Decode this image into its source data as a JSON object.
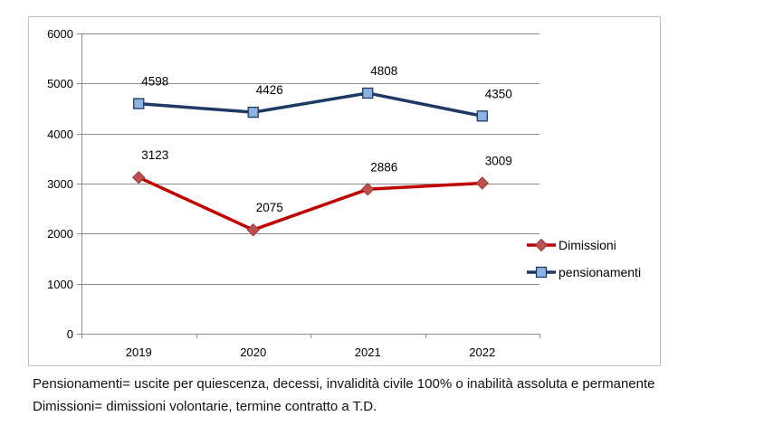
{
  "chart_data": {
    "type": "line",
    "categories": [
      "2019",
      "2020",
      "2021",
      "2022"
    ],
    "series": [
      {
        "name": "Dimissioni",
        "values": [
          3123,
          2075,
          2886,
          3009
        ],
        "color": "#C00000",
        "marker": "diamond",
        "marker_color": "#C0504D"
      },
      {
        "name": "pensionamenti",
        "values": [
          4598,
          4426,
          4808,
          4350
        ],
        "color": "#1F3864",
        "marker": "square",
        "marker_color": "#8DB3E2"
      }
    ],
    "title": "",
    "xlabel": "",
    "ylabel": "",
    "ylim": [
      0,
      6000
    ],
    "yticks": [
      0,
      1000,
      2000,
      3000,
      4000,
      5000,
      6000
    ],
    "grid": true,
    "legend_position": "right"
  },
  "notes": {
    "line1": "Pensionamenti= uscite per quiescenza, decessi, invalidità civile 100% o inabilità assoluta e permanente",
    "line2": "Dimissioni= dimissioni volontarie, termine contratto a T.D."
  }
}
